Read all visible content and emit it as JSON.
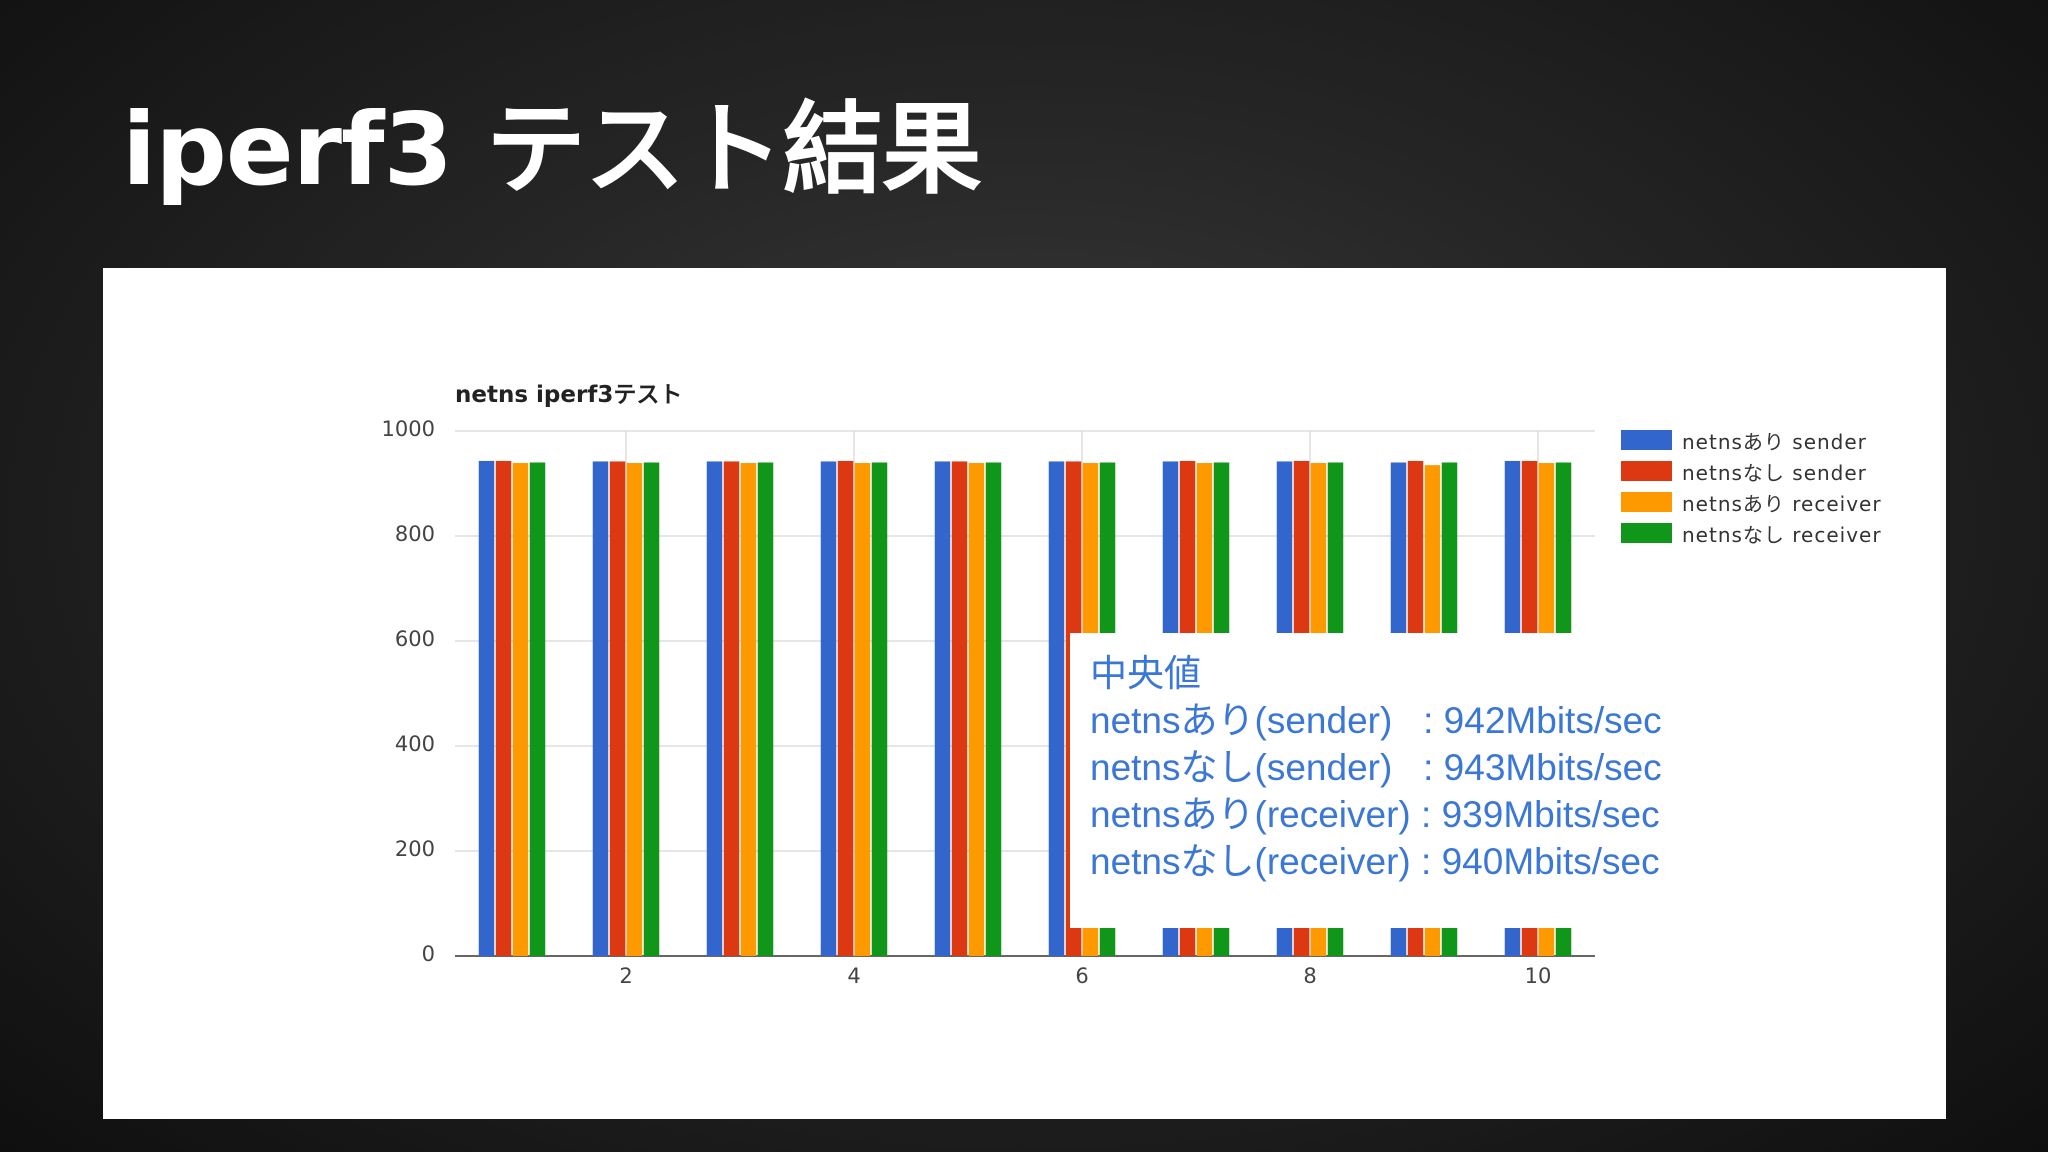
{
  "slide": {
    "title": "iperf3 テスト結果"
  },
  "chart_data": {
    "type": "bar",
    "title": "netns iperf3テスト",
    "xlabel": "",
    "ylabel": "",
    "x": [
      1,
      2,
      3,
      4,
      5,
      6,
      7,
      8,
      9,
      10
    ],
    "x_tick_labels": [
      "2",
      "4",
      "6",
      "8",
      "10"
    ],
    "x_tick_values": [
      2,
      4,
      6,
      8,
      10
    ],
    "ylim": [
      0,
      1000
    ],
    "y_ticks": [
      "0",
      "200",
      "400",
      "600",
      "800",
      "1000"
    ],
    "grid": true,
    "legend_position": "right",
    "series": [
      {
        "name": "netnsあり sender",
        "color": "#3366cc",
        "values": [
          943,
          942,
          942,
          942,
          942,
          942,
          942,
          942,
          940,
          943
        ]
      },
      {
        "name": "netnsなし sender",
        "color": "#dc3912",
        "values": [
          943,
          942,
          942,
          943,
          942,
          942,
          943,
          943,
          943,
          943
        ]
      },
      {
        "name": "netnsあり receiver",
        "color": "#ff9900",
        "values": [
          939,
          939,
          939,
          939,
          939,
          939,
          939,
          939,
          935,
          939
        ]
      },
      {
        "name": "netnsなし receiver",
        "color": "#109618",
        "values": [
          940,
          940,
          940,
          940,
          940,
          940,
          940,
          940,
          940,
          940
        ]
      }
    ]
  },
  "median_box": {
    "heading": "中央値",
    "lines": [
      "netnsあり(sender)   : 942Mbits/sec",
      "netnsなし(sender)   : 943Mbits/sec",
      "netnsあり(receiver) : 939Mbits/sec",
      "netnsなし(receiver) : 940Mbits/sec"
    ]
  }
}
